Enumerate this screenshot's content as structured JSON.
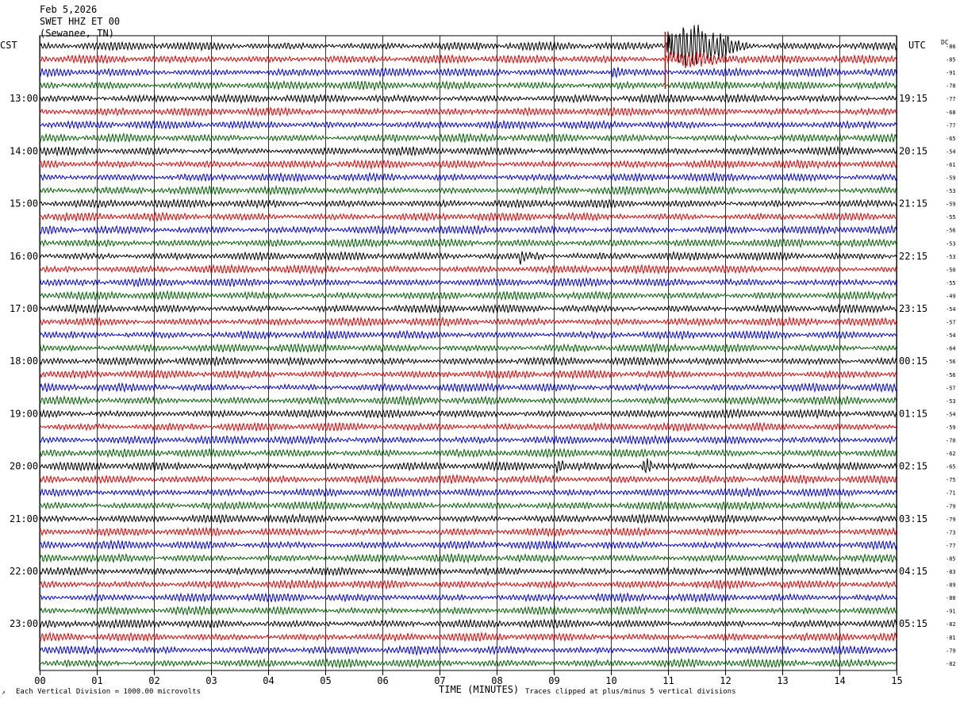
{
  "header": {
    "date": "Feb 5,2026",
    "station": "SWET HHZ ET 00",
    "location": "(Sewanee, TN)"
  },
  "left_zone": "CST",
  "right_zone": "UTC",
  "dc_label": "DC",
  "footer": {
    "scale_note": "Each Vertical Division = 1000.00 microvolts",
    "xlabel": "TIME (MINUTES)",
    "clip_note": "Traces clipped at plus/minus 5 vertical divisions"
  },
  "colors": {
    "trace_cycle": [
      "#000000",
      "#e00000",
      "#0000e0",
      "#006000"
    ],
    "grid": "#000000"
  },
  "chart_data": {
    "type": "line",
    "title": "Feb 5,2026 SWET HHZ ET 00 (Sewanee, TN)",
    "xlabel": "TIME (MINUTES)",
    "xlim": [
      0,
      15
    ],
    "x_ticks": [
      "00",
      "01",
      "02",
      "03",
      "04",
      "05",
      "06",
      "07",
      "08",
      "09",
      "10",
      "11",
      "12",
      "13",
      "14",
      "15"
    ],
    "trace_count": 48,
    "minutes_per_trace": 15,
    "left_hour_labels": [
      {
        "trace": 4,
        "label": "13:00"
      },
      {
        "trace": 8,
        "label": "14:00"
      },
      {
        "trace": 12,
        "label": "15:00"
      },
      {
        "trace": 16,
        "label": "16:00"
      },
      {
        "trace": 20,
        "label": "17:00"
      },
      {
        "trace": 24,
        "label": "18:00"
      },
      {
        "trace": 28,
        "label": "19:00"
      },
      {
        "trace": 32,
        "label": "20:00"
      },
      {
        "trace": 36,
        "label": "21:00"
      },
      {
        "trace": 40,
        "label": "22:00"
      },
      {
        "trace": 44,
        "label": "23:00"
      }
    ],
    "right_hour_labels": [
      {
        "trace": 4,
        "label": "19:15"
      },
      {
        "trace": 8,
        "label": "20:15"
      },
      {
        "trace": 12,
        "label": "21:15"
      },
      {
        "trace": 16,
        "label": "22:15"
      },
      {
        "trace": 20,
        "label": "23:15"
      },
      {
        "trace": 24,
        "label": "00:15"
      },
      {
        "trace": 28,
        "label": "01:15"
      },
      {
        "trace": 32,
        "label": "02:15"
      },
      {
        "trace": 36,
        "label": "03:15"
      },
      {
        "trace": 40,
        "label": "04:15"
      },
      {
        "trace": 44,
        "label": "05:15"
      }
    ],
    "dc_offsets": [
      "-86",
      "-85",
      "-91",
      "-78",
      "-77",
      "-68",
      "-77",
      "-65",
      "-54",
      "-61",
      "-59",
      "-53",
      "-59",
      "-55",
      "-56",
      "-53",
      "-53",
      "-50",
      "-55",
      "-49",
      "-54",
      "-57",
      "-54",
      "-64",
      "-56",
      "-56",
      "-57",
      "-53",
      "-54",
      "-59",
      "-70",
      "-62",
      "-65",
      "-75",
      "-71",
      "-79",
      "-79",
      "-73",
      "-77",
      "-85",
      "-83",
      "-89",
      "-80",
      "-91",
      "-82",
      "-81",
      "-79",
      "-82"
    ],
    "events": [
      {
        "trace": 0,
        "minute_start": 10.95,
        "duration": 1.6,
        "amplitude": 8,
        "label": "clipped"
      },
      {
        "trace": 1,
        "minute_start": 10.95,
        "duration": 1.8,
        "amplitude": 2.2
      },
      {
        "trace": 2,
        "minute_start": 10.0,
        "duration": 0.3,
        "amplitude": 1.6
      },
      {
        "trace": 16,
        "minute_start": 8.4,
        "duration": 0.5,
        "amplitude": 1.8
      },
      {
        "trace": 32,
        "minute_start": 9.05,
        "duration": 0.15,
        "amplitude": 2.5
      },
      {
        "trace": 32,
        "minute_start": 10.55,
        "duration": 0.25,
        "amplitude": 3.2
      }
    ]
  }
}
